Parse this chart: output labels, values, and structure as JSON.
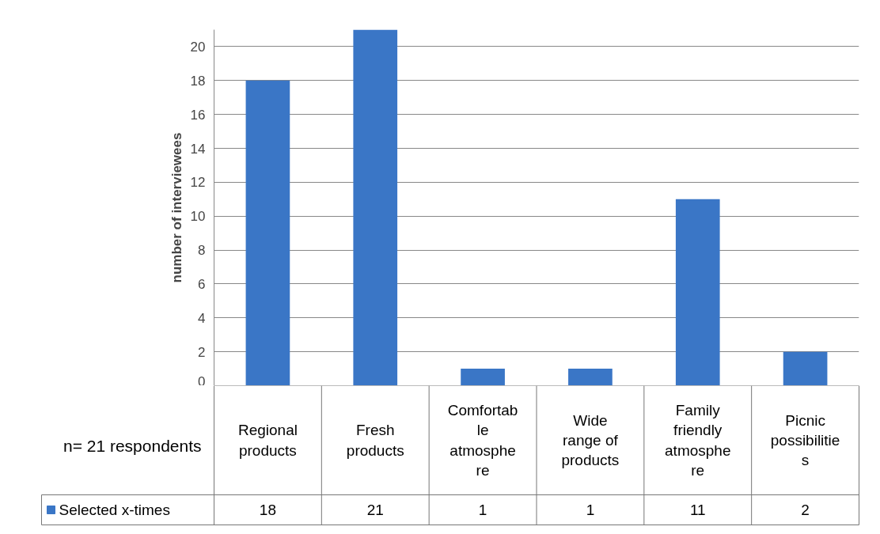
{
  "chart_data": {
    "type": "bar",
    "ylabel": "number of interviewees",
    "categories": [
      "Regional\nproducts",
      "Fresh\nproducts",
      "Comfortab\nle\natmosphe\nre",
      "Wide\nrange of\nproducts",
      "Family\nfriendly\natmosphe\nre",
      "Picnic\npossibilitie\ns"
    ],
    "series": [
      {
        "name": "Selected x-times",
        "color": "#3a76c6",
        "values": [
          18,
          21,
          1,
          1,
          11,
          2
        ]
      }
    ],
    "ylim": [
      0,
      21
    ],
    "yticks": [
      0,
      2,
      4,
      6,
      8,
      10,
      12,
      14,
      16,
      18,
      20
    ],
    "grid": "y",
    "legend": "bottom",
    "data_labels": true,
    "annotations": [
      "n= 21 respondents"
    ]
  }
}
